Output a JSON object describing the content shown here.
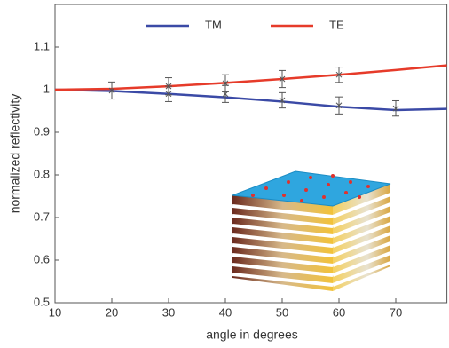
{
  "chart_data": {
    "type": "line",
    "xlabel": "angle in degrees",
    "ylabel": "normalized reflectivity",
    "xlim": [
      10,
      79
    ],
    "ylim": [
      0.5,
      1.2
    ],
    "xticks": [
      10,
      20,
      30,
      40,
      50,
      60,
      70
    ],
    "yticks": [
      0.5,
      0.6,
      0.7,
      0.8,
      0.9,
      1,
      1.1
    ],
    "series": [
      {
        "name": "TM",
        "color": "#3b4aa6",
        "x": [
          10,
          20,
          30,
          40,
          50,
          60,
          70,
          79
        ],
        "values": [
          1.0,
          0.997,
          0.99,
          0.982,
          0.972,
          0.96,
          0.952,
          0.955
        ]
      },
      {
        "name": "TE",
        "color": "#e63b2a",
        "x": [
          10,
          20,
          30,
          40,
          50,
          60,
          70,
          79
        ],
        "values": [
          1.0,
          1.002,
          1.008,
          1.016,
          1.025,
          1.035,
          1.046,
          1.057
        ]
      }
    ],
    "measured": [
      {
        "x": [
          20,
          30,
          40,
          50,
          60,
          70
        ],
        "values": [
          0.998,
          0.99,
          0.99,
          0.975,
          0.963,
          0.956
        ],
        "errors": [
          0.02,
          0.018,
          0.02,
          0.018,
          0.02,
          0.018
        ]
      },
      {
        "x": [
          30,
          40,
          50,
          60
        ],
        "values": [
          1.008,
          1.015,
          1.025,
          1.035
        ],
        "errors": [
          0.02,
          0.02,
          0.02,
          0.018
        ]
      }
    ]
  }
}
